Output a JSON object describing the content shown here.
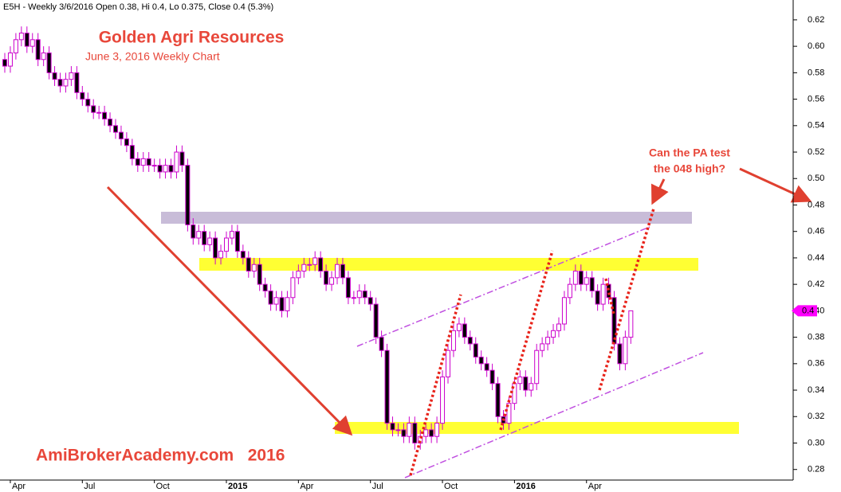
{
  "chart_data": {
    "type": "candlestick",
    "header": "E5H - Weekly 3/6/2016 Open 0.38, Hi 0.4, Lo 0.375, Close 0.4 (5.3%)",
    "title": "Golden Agri Resources",
    "subtitle": "June 3, 2016 Weekly Chart",
    "watermark": "AmiBrokerAcademy.com   2016",
    "callout": [
      "Can the PA test",
      "the 048 high?"
    ],
    "last_price": 0.4,
    "categories": [
      null,
      "Apr",
      null,
      null,
      null,
      null,
      null,
      null,
      null,
      null,
      null,
      null,
      null,
      null,
      "Jul",
      null,
      null,
      null,
      null,
      null,
      null,
      null,
      null,
      null,
      null,
      null,
      null,
      "Oct",
      null,
      null,
      null,
      null,
      null,
      null,
      null,
      null,
      null,
      null,
      null,
      null,
      "2015",
      null,
      null,
      null,
      null,
      null,
      null,
      null,
      null,
      null,
      null,
      null,
      null,
      "Apr",
      null,
      null,
      null,
      null,
      null,
      null,
      null,
      null,
      null,
      null,
      null,
      null,
      "Jul",
      null,
      null,
      null,
      null,
      null,
      null,
      null,
      null,
      null,
      null,
      null,
      null,
      "Oct",
      null,
      null,
      null,
      null,
      null,
      null,
      null,
      null,
      null,
      null,
      null,
      null,
      "2016",
      null,
      null,
      null,
      null,
      null,
      null,
      null,
      null,
      null,
      null,
      null,
      null,
      "Apr",
      null,
      null,
      null,
      null,
      null,
      null,
      null,
      null
    ],
    "open": [
      0.59,
      0.585,
      0.595,
      0.605,
      0.61,
      0.6,
      0.605,
      0.59,
      0.595,
      0.58,
      0.575,
      0.57,
      0.575,
      0.58,
      0.565,
      0.56,
      0.555,
      0.55,
      0.55,
      0.545,
      0.54,
      0.535,
      0.53,
      0.525,
      0.515,
      0.51,
      0.515,
      0.51,
      0.51,
      0.505,
      0.51,
      0.505,
      0.52,
      0.51,
      0.465,
      0.455,
      0.46,
      0.45,
      0.455,
      0.44,
      0.445,
      0.455,
      0.46,
      0.445,
      0.44,
      0.43,
      0.435,
      0.42,
      0.415,
      0.405,
      0.41,
      0.4,
      0.41,
      0.425,
      0.43,
      0.435,
      0.435,
      0.44,
      0.43,
      0.42,
      0.425,
      0.435,
      0.425,
      0.41,
      0.41,
      0.415,
      0.41,
      0.405,
      0.38,
      0.37,
      0.315,
      0.31,
      0.31,
      0.305,
      0.315,
      0.3,
      0.305,
      0.31,
      0.305,
      0.315,
      0.35,
      0.37,
      0.385,
      0.39,
      0.38,
      0.375,
      0.365,
      0.36,
      0.355,
      0.345,
      0.32,
      0.315,
      0.33,
      0.345,
      0.35,
      0.34,
      0.345,
      0.37,
      0.375,
      0.38,
      0.385,
      0.39,
      0.41,
      0.42,
      0.43,
      0.42,
      0.425,
      0.415,
      0.405,
      0.42,
      0.41,
      0.375,
      0.36,
      0.38
    ],
    "high": [
      0.595,
      0.6,
      0.61,
      0.615,
      0.615,
      0.61,
      0.61,
      0.6,
      0.6,
      0.585,
      0.58,
      0.58,
      0.585,
      0.585,
      0.57,
      0.565,
      0.56,
      0.555,
      0.555,
      0.55,
      0.545,
      0.54,
      0.535,
      0.53,
      0.52,
      0.52,
      0.52,
      0.515,
      0.515,
      0.515,
      0.515,
      0.525,
      0.525,
      0.515,
      0.47,
      0.465,
      0.465,
      0.46,
      0.46,
      0.45,
      0.46,
      0.465,
      0.465,
      0.45,
      0.445,
      0.44,
      0.44,
      0.425,
      0.42,
      0.415,
      0.415,
      0.415,
      0.43,
      0.435,
      0.44,
      0.44,
      0.445,
      0.445,
      0.435,
      0.43,
      0.44,
      0.44,
      0.43,
      0.415,
      0.42,
      0.42,
      0.415,
      0.41,
      0.385,
      0.375,
      0.32,
      0.315,
      0.315,
      0.32,
      0.32,
      0.31,
      0.315,
      0.315,
      0.32,
      0.355,
      0.375,
      0.39,
      0.395,
      0.395,
      0.385,
      0.38,
      0.37,
      0.365,
      0.36,
      0.35,
      0.325,
      0.335,
      0.35,
      0.355,
      0.355,
      0.35,
      0.375,
      0.38,
      0.385,
      0.39,
      0.395,
      0.415,
      0.425,
      0.435,
      0.435,
      0.43,
      0.43,
      0.42,
      0.425,
      0.425,
      0.415,
      0.38,
      0.385,
      0.4
    ],
    "low": [
      0.58,
      0.58,
      0.59,
      0.6,
      0.595,
      0.595,
      0.585,
      0.585,
      0.575,
      0.57,
      0.565,
      0.565,
      0.57,
      0.56,
      0.555,
      0.55,
      0.545,
      0.545,
      0.54,
      0.535,
      0.53,
      0.525,
      0.52,
      0.51,
      0.505,
      0.505,
      0.505,
      0.505,
      0.5,
      0.5,
      0.5,
      0.5,
      0.505,
      0.46,
      0.45,
      0.45,
      0.445,
      0.445,
      0.435,
      0.435,
      0.44,
      0.45,
      0.44,
      0.435,
      0.425,
      0.425,
      0.415,
      0.41,
      0.4,
      0.4,
      0.395,
      0.395,
      0.405,
      0.42,
      0.425,
      0.43,
      0.43,
      0.425,
      0.415,
      0.415,
      0.42,
      0.42,
      0.405,
      0.405,
      0.405,
      0.405,
      0.4,
      0.375,
      0.365,
      0.31,
      0.305,
      0.305,
      0.3,
      0.3,
      0.295,
      0.295,
      0.3,
      0.3,
      0.3,
      0.31,
      0.345,
      0.365,
      0.38,
      0.375,
      0.37,
      0.36,
      0.355,
      0.35,
      0.34,
      0.315,
      0.31,
      0.31,
      0.325,
      0.34,
      0.335,
      0.335,
      0.34,
      0.365,
      0.37,
      0.375,
      0.38,
      0.385,
      0.405,
      0.415,
      0.415,
      0.415,
      0.41,
      0.4,
      0.4,
      0.405,
      0.37,
      0.355,
      0.355,
      0.375
    ],
    "close": [
      0.585,
      0.595,
      0.605,
      0.61,
      0.6,
      0.605,
      0.59,
      0.595,
      0.58,
      0.575,
      0.57,
      0.575,
      0.58,
      0.565,
      0.56,
      0.555,
      0.55,
      0.55,
      0.545,
      0.54,
      0.535,
      0.53,
      0.525,
      0.515,
      0.51,
      0.515,
      0.51,
      0.51,
      0.505,
      0.51,
      0.505,
      0.52,
      0.51,
      0.465,
      0.455,
      0.46,
      0.45,
      0.455,
      0.44,
      0.445,
      0.455,
      0.46,
      0.445,
      0.44,
      0.43,
      0.435,
      0.42,
      0.415,
      0.405,
      0.41,
      0.4,
      0.41,
      0.425,
      0.43,
      0.435,
      0.435,
      0.44,
      0.43,
      0.42,
      0.425,
      0.435,
      0.425,
      0.41,
      0.41,
      0.415,
      0.41,
      0.405,
      0.38,
      0.37,
      0.315,
      0.31,
      0.31,
      0.305,
      0.315,
      0.3,
      0.305,
      0.31,
      0.305,
      0.315,
      0.35,
      0.37,
      0.385,
      0.39,
      0.38,
      0.375,
      0.365,
      0.36,
      0.355,
      0.345,
      0.32,
      0.315,
      0.33,
      0.345,
      0.35,
      0.34,
      0.345,
      0.37,
      0.375,
      0.38,
      0.385,
      0.39,
      0.41,
      0.42,
      0.43,
      0.42,
      0.425,
      0.415,
      0.405,
      0.42,
      0.41,
      0.375,
      0.36,
      0.38,
      0.4
    ],
    "colors": {
      "up": "#ffffff",
      "down": "#000000",
      "wick": "#cc00cc",
      "tag": "#ff00ff"
    },
    "ylim": [
      0.272,
      0.635
    ],
    "yticks": [
      0.28,
      {
        "value": 0.3,
        "label": "0.30"
      },
      0.32,
      0.34,
      0.36,
      0.38,
      {
        "value": 0.4,
        "label": "0.40"
      },
      0.42,
      0.44,
      0.46,
      0.48,
      {
        "value": 0.5,
        "label": "0.50"
      },
      0.52,
      0.54,
      0.56,
      0.58,
      {
        "value": 0.6,
        "label": "0.60"
      },
      0.62
    ]
  }
}
